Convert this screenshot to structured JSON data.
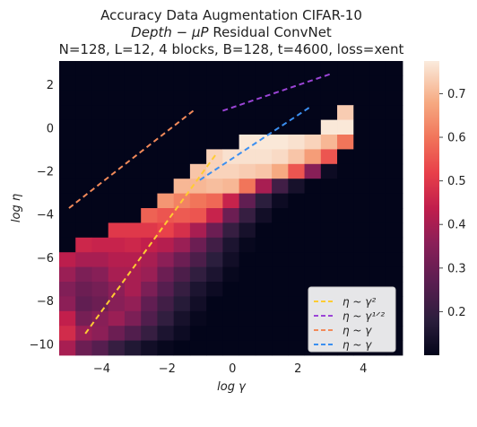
{
  "chart_data": {
    "type": "heatmap",
    "title_lines": [
      "Accuracy Data Augmentation CIFAR-10",
      "Depth − μP Residual ConvNet",
      "N=128, L=12, 4 blocks, B=128, t=4600, loss=xent"
    ],
    "xlabel": "log γ",
    "ylabel": "log η",
    "xlim": [
      -5.3,
      5.2
    ],
    "ylim": [
      -10.5,
      3.1
    ],
    "x_ticks": [
      -4,
      -2,
      0,
      2,
      4
    ],
    "y_ticks": [
      -10,
      -8,
      -6,
      -4,
      -2,
      0,
      2
    ],
    "x_tick_labels": [
      "−4",
      "−2",
      "0",
      "2",
      "4"
    ],
    "y_tick_labels": [
      "−10",
      "−8",
      "−6",
      "−4",
      "−2",
      "0",
      "2"
    ],
    "colorbar": {
      "range": [
        0.1,
        0.775
      ],
      "ticks": [
        0.2,
        0.3,
        0.4,
        0.5,
        0.6,
        0.7
      ],
      "tick_labels": [
        "0.2",
        "0.3",
        "0.4",
        "0.5",
        "0.6",
        "0.7"
      ],
      "colormap": "rocket"
    },
    "grid": {
      "x_start": -5.3,
      "x_step": 0.5,
      "y_start": 3.1,
      "y_step": -0.68,
      "cols": 21,
      "rows": 20,
      "values": [
        [
          0.1,
          0.1,
          0.1,
          0.1,
          0.1,
          0.1,
          0.1,
          0.1,
          0.1,
          0.1,
          0.1,
          0.1,
          0.1,
          0.1,
          0.1,
          0.1,
          0.1,
          0.1,
          0.1,
          0.1,
          0.1
        ],
        [
          0.1,
          0.1,
          0.1,
          0.1,
          0.1,
          0.1,
          0.1,
          0.1,
          0.1,
          0.1,
          0.1,
          0.1,
          0.1,
          0.1,
          0.1,
          0.1,
          0.1,
          0.1,
          0.1,
          0.1,
          0.1
        ],
        [
          0.1,
          0.1,
          0.1,
          0.1,
          0.1,
          0.1,
          0.1,
          0.1,
          0.1,
          0.1,
          0.1,
          0.1,
          0.1,
          0.1,
          0.1,
          0.1,
          0.1,
          0.1,
          0.1,
          0.1,
          0.1
        ],
        [
          0.1,
          0.1,
          0.1,
          0.1,
          0.1,
          0.1,
          0.1,
          0.1,
          0.1,
          0.1,
          0.1,
          0.1,
          0.1,
          0.1,
          0.1,
          0.1,
          0.1,
          0.73,
          0.1,
          0.1,
          0.1
        ],
        [
          0.1,
          0.1,
          0.1,
          0.1,
          0.1,
          0.1,
          0.1,
          0.1,
          0.1,
          0.1,
          0.1,
          0.1,
          0.1,
          0.1,
          0.1,
          0.1,
          0.77,
          0.77,
          0.1,
          0.1,
          0.1
        ],
        [
          0.1,
          0.1,
          0.1,
          0.1,
          0.1,
          0.1,
          0.1,
          0.1,
          0.1,
          0.1,
          0.1,
          0.77,
          0.77,
          0.77,
          0.76,
          0.74,
          0.7,
          0.6,
          0.1,
          0.1,
          0.1
        ],
        [
          0.1,
          0.1,
          0.1,
          0.1,
          0.1,
          0.1,
          0.1,
          0.1,
          0.1,
          0.74,
          0.76,
          0.76,
          0.76,
          0.75,
          0.72,
          0.66,
          0.55,
          0.1,
          0.1,
          0.1,
          0.1
        ],
        [
          0.1,
          0.1,
          0.1,
          0.1,
          0.1,
          0.1,
          0.1,
          0.1,
          0.72,
          0.74,
          0.74,
          0.73,
          0.72,
          0.68,
          0.55,
          0.35,
          0.12,
          0.1,
          0.1,
          0.1,
          0.1
        ],
        [
          0.1,
          0.1,
          0.1,
          0.1,
          0.1,
          0.1,
          0.1,
          0.7,
          0.7,
          0.71,
          0.7,
          0.6,
          0.4,
          0.22,
          0.14,
          0.1,
          0.1,
          0.1,
          0.1,
          0.1,
          0.1
        ],
        [
          0.1,
          0.1,
          0.1,
          0.1,
          0.1,
          0.1,
          0.65,
          0.62,
          0.6,
          0.58,
          0.45,
          0.28,
          0.18,
          0.12,
          0.1,
          0.1,
          0.1,
          0.1,
          0.1,
          0.1,
          0.1
        ],
        [
          0.1,
          0.1,
          0.1,
          0.1,
          0.1,
          0.57,
          0.55,
          0.56,
          0.55,
          0.45,
          0.3,
          0.2,
          0.13,
          0.1,
          0.1,
          0.1,
          0.1,
          0.1,
          0.1,
          0.1,
          0.1
        ],
        [
          0.1,
          0.1,
          0.1,
          0.5,
          0.5,
          0.5,
          0.52,
          0.48,
          0.4,
          0.3,
          0.2,
          0.14,
          0.1,
          0.1,
          0.1,
          0.1,
          0.1,
          0.1,
          0.1,
          0.1,
          0.1
        ],
        [
          0.1,
          0.46,
          0.45,
          0.45,
          0.46,
          0.44,
          0.42,
          0.38,
          0.3,
          0.22,
          0.15,
          0.11,
          0.1,
          0.1,
          0.1,
          0.1,
          0.1,
          0.1,
          0.1,
          0.1,
          0.1
        ],
        [
          0.43,
          0.4,
          0.4,
          0.42,
          0.42,
          0.4,
          0.36,
          0.3,
          0.24,
          0.18,
          0.13,
          0.1,
          0.1,
          0.1,
          0.1,
          0.1,
          0.1,
          0.1,
          0.1,
          0.1,
          0.1
        ],
        [
          0.38,
          0.33,
          0.35,
          0.4,
          0.4,
          0.38,
          0.3,
          0.24,
          0.19,
          0.15,
          0.11,
          0.1,
          0.1,
          0.1,
          0.1,
          0.1,
          0.1,
          0.1,
          0.1,
          0.1,
          0.1
        ],
        [
          0.34,
          0.3,
          0.32,
          0.36,
          0.4,
          0.33,
          0.26,
          0.2,
          0.15,
          0.12,
          0.1,
          0.1,
          0.1,
          0.1,
          0.1,
          0.1,
          0.1,
          0.1,
          0.1,
          0.1,
          0.1
        ],
        [
          0.36,
          0.28,
          0.3,
          0.35,
          0.37,
          0.28,
          0.22,
          0.17,
          0.13,
          0.1,
          0.1,
          0.1,
          0.1,
          0.1,
          0.1,
          0.1,
          0.1,
          0.1,
          0.1,
          0.1,
          0.1
        ],
        [
          0.44,
          0.32,
          0.35,
          0.38,
          0.33,
          0.25,
          0.19,
          0.14,
          0.11,
          0.1,
          0.1,
          0.1,
          0.1,
          0.1,
          0.1,
          0.1,
          0.1,
          0.1,
          0.1,
          0.1,
          0.1
        ],
        [
          0.47,
          0.38,
          0.36,
          0.3,
          0.25,
          0.2,
          0.15,
          0.12,
          0.1,
          0.1,
          0.1,
          0.1,
          0.1,
          0.1,
          0.1,
          0.1,
          0.1,
          0.1,
          0.1,
          0.1,
          0.1
        ],
        [
          0.4,
          0.3,
          0.26,
          0.2,
          0.16,
          0.13,
          0.11,
          0.1,
          0.1,
          0.1,
          0.1,
          0.1,
          0.1,
          0.1,
          0.1,
          0.1,
          0.1,
          0.1,
          0.1,
          0.1,
          0.1
        ]
      ]
    },
    "lines": [
      {
        "label": "η ~ γ²",
        "color": "#ffcc33",
        "x": [
          -4.5,
          -0.5
        ],
        "y": [
          -9.5,
          -1.2
        ]
      },
      {
        "label": "η ~ γ¹ᐟ²",
        "color": "#9b44d6",
        "x": [
          -0.3,
          3.0
        ],
        "y": [
          0.8,
          2.5
        ]
      },
      {
        "label": "η ~ γ",
        "color": "#f28a5a",
        "x": [
          -5.0,
          -1.2
        ],
        "y": [
          -3.7,
          0.8
        ]
      },
      {
        "label": "η ~ γ",
        "color": "#3b8ff0",
        "x": [
          -1.0,
          2.4
        ],
        "y": [
          -2.4,
          1.0
        ]
      }
    ],
    "legend": {
      "placement": "lower-right",
      "entries": [
        "η ~ γ²",
        "η ~ γ¹ᐟ²",
        "η ~ γ",
        "η ~ γ"
      ]
    }
  }
}
